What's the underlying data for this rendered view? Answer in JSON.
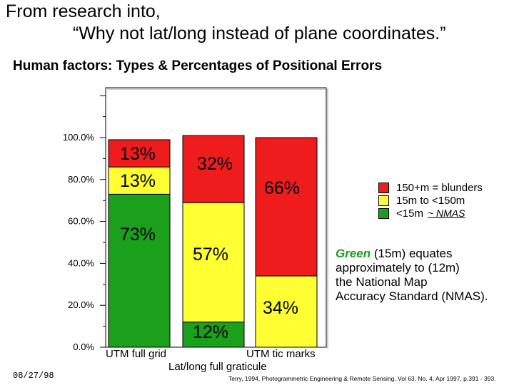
{
  "title_line1": "From research into,",
  "title_line2": "“Why not lat/long instead of plane coordinates.”",
  "subtitle": "Human factors: Types & Percentages of Positional Errors",
  "date": "08/27/98",
  "citation": "Terry, 1994, Photogrammetric Engineering & Remote Sensing, Vol 63, No. 4, Apr 1997, p.391 - 393.",
  "legend": [
    {
      "label": "150+m = blunders",
      "color": "#ee1c1c"
    },
    {
      "label": "15m to <150m",
      "color": "#ffff33"
    },
    {
      "label": "<15m",
      "color": "#1aa01a",
      "suffix": "~ NMAS"
    }
  ],
  "note": {
    "green_word": "Green",
    "line1_rest": " (15m) equates",
    "line2": "approximately to (12m)",
    "line3": "the National Map",
    "line4": "Accuracy Standard (NMAS)."
  },
  "x_labels": {
    "left": "UTM full grid",
    "right": "UTM tic marks",
    "below": "Lat/long full graticule"
  },
  "chart_data": {
    "type": "bar",
    "stacked": true,
    "categories": [
      "UTM full grid",
      "Lat/long full graticule",
      "UTM tic marks"
    ],
    "series": [
      {
        "name": "<15m",
        "color": "#1aa01a",
        "values": [
          73,
          12,
          0
        ],
        "labels": [
          "73%",
          "12%",
          ""
        ]
      },
      {
        "name": "15m to <150m",
        "color": "#ffff33",
        "values": [
          13,
          57,
          34
        ],
        "labels": [
          "13%",
          "57%",
          "34%"
        ]
      },
      {
        "name": "150+m = blunders",
        "color": "#ee1c1c",
        "values": [
          13,
          32,
          66
        ],
        "labels": [
          "13%",
          "32%",
          "66%"
        ]
      }
    ],
    "y_ticks": [
      "0.0%",
      "20.0%",
      "40.0%",
      "60.0%",
      "80.0%",
      "100.0%"
    ],
    "y_tick_values": [
      0,
      20,
      40,
      60,
      80,
      100
    ],
    "ylim": [
      0,
      100
    ]
  }
}
